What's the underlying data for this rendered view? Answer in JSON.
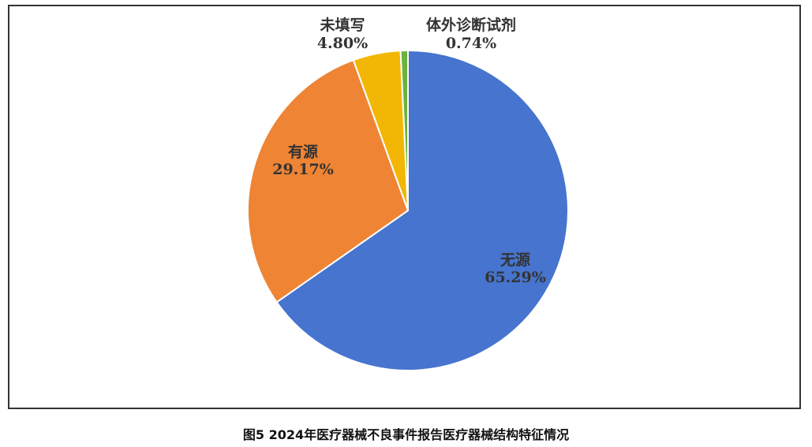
{
  "caption": "图5  2024年医疗器械不良事件报告医疗器械结构特征情况",
  "chart_data": {
    "type": "pie",
    "title": "",
    "slices": [
      {
        "label": "无源",
        "value": 65.29,
        "value_label": "65.29%",
        "color": "#4674CE"
      },
      {
        "label": "有源",
        "value": 29.17,
        "value_label": "29.17%",
        "color": "#EE8434"
      },
      {
        "label": "未填写",
        "value": 4.8,
        "value_label": "4.80%",
        "color": "#F2B705"
      },
      {
        "label": "体外诊断试剂",
        "value": 0.74,
        "value_label": "0.74%",
        "color": "#6BB33B"
      }
    ],
    "start_angle_deg": 0,
    "direction": "clockwise",
    "legend": "none",
    "label_color": "#333333"
  }
}
